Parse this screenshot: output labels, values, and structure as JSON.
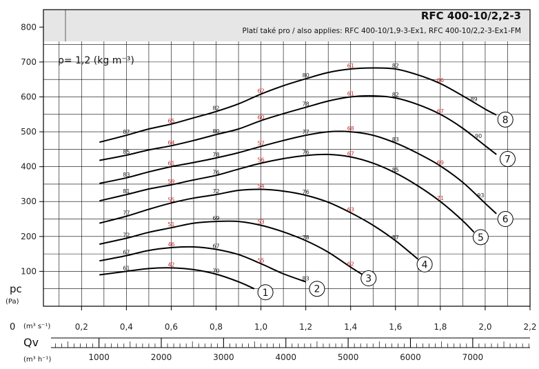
{
  "chart_data": {
    "type": "line",
    "title": "RFC 400-10/2,2-3",
    "subtitle": "Platí také pro / also applies: RFC 400-10/1,9-3-Ex1, RFC 400-10/2,2-3-Ex1-FM",
    "density_note": "ρ= 1,2 (kg m⁻³)",
    "ylabel": "pc",
    "ylabel_unit": "(Pa)",
    "ylim": [
      0,
      850
    ],
    "y_ticks": [
      "100",
      "200",
      "300",
      "400",
      "500",
      "600",
      "700",
      "800"
    ],
    "xlabel": "Qv",
    "x_unit_m3s": "(m³ s⁻¹)",
    "x_unit_m3h": "(m³ h⁻¹)",
    "x_origin_label": "0",
    "xlim": [
      0.03,
      2.2
    ],
    "x_ticks_m3s": [
      "0,2",
      "0,4",
      "0,6",
      "0,8",
      "1,0",
      "1,2",
      "1,4",
      "1,6",
      "1,8",
      "2,0",
      "2,2"
    ],
    "x_ticks_m3h": [
      "1000",
      "2000",
      "3000",
      "4000",
      "5000",
      "6000",
      "7000"
    ],
    "series": [
      {
        "name": "1",
        "x": [
          0.28,
          0.4,
          0.5,
          0.6,
          0.7,
          0.8,
          0.9,
          0.97
        ],
        "y": [
          90,
          100,
          108,
          110,
          105,
          92,
          70,
          50
        ],
        "labels": [
          [
            "61",
            0.4,
            100,
            "black"
          ],
          [
            "42",
            0.6,
            110,
            "red"
          ],
          [
            "70",
            0.8,
            92,
            "black"
          ]
        ]
      },
      {
        "name": "2",
        "x": [
          0.28,
          0.4,
          0.5,
          0.6,
          0.7,
          0.8,
          0.9,
          1.0,
          1.1,
          1.2
        ],
        "y": [
          130,
          145,
          160,
          168,
          170,
          163,
          148,
          122,
          93,
          70
        ],
        "labels": [
          [
            "67",
            0.4,
            145,
            "black"
          ],
          [
            "46",
            0.6,
            168,
            "red"
          ],
          [
            "67",
            0.8,
            163,
            "black"
          ],
          [
            "55",
            1.0,
            122,
            "red"
          ],
          [
            "83",
            1.2,
            70,
            "black"
          ]
        ]
      },
      {
        "name": "3",
        "x": [
          0.28,
          0.4,
          0.5,
          0.6,
          0.7,
          0.8,
          0.9,
          1.0,
          1.1,
          1.2,
          1.3,
          1.4,
          1.45
        ],
        "y": [
          178,
          195,
          212,
          225,
          238,
          243,
          243,
          232,
          213,
          188,
          155,
          112,
          92
        ],
        "labels": [
          [
            "72",
            0.4,
            195,
            "black"
          ],
          [
            "51",
            0.6,
            225,
            "red"
          ],
          [
            "69",
            0.8,
            243,
            "black"
          ],
          [
            "53",
            1.0,
            232,
            "red"
          ],
          [
            "78",
            1.2,
            188,
            "black"
          ],
          [
            "62",
            1.4,
            112,
            "red"
          ]
        ]
      },
      {
        "name": "4",
        "x": [
          0.28,
          0.4,
          0.5,
          0.6,
          0.7,
          0.8,
          0.9,
          1.0,
          1.1,
          1.2,
          1.3,
          1.4,
          1.5,
          1.6,
          1.7
        ],
        "y": [
          238,
          258,
          278,
          296,
          310,
          320,
          332,
          335,
          330,
          318,
          298,
          268,
          232,
          188,
          135
        ],
        "labels": [
          [
            "77",
            0.4,
            258,
            "black"
          ],
          [
            "55",
            0.6,
            296,
            "red"
          ],
          [
            "72",
            0.8,
            320,
            "black"
          ],
          [
            "54",
            1.0,
            335,
            "red"
          ],
          [
            "76",
            1.2,
            318,
            "black"
          ],
          [
            "63",
            1.4,
            268,
            "red"
          ],
          [
            "87",
            1.6,
            188,
            "black"
          ]
        ]
      },
      {
        "name": "5",
        "x": [
          0.28,
          0.4,
          0.5,
          0.6,
          0.7,
          0.8,
          0.9,
          1.0,
          1.1,
          1.2,
          1.3,
          1.4,
          1.5,
          1.6,
          1.7,
          1.8,
          1.9,
          1.95
        ],
        "y": [
          302,
          320,
          336,
          348,
          362,
          375,
          393,
          410,
          423,
          432,
          435,
          428,
          410,
          382,
          345,
          300,
          245,
          212
        ],
        "labels": [
          [
            "81",
            0.4,
            320,
            "black"
          ],
          [
            "59",
            0.6,
            348,
            "red"
          ],
          [
            "76",
            0.8,
            375,
            "black"
          ],
          [
            "56",
            1.0,
            410,
            "red"
          ],
          [
            "76",
            1.2,
            432,
            "black"
          ],
          [
            "67",
            1.4,
            428,
            "red"
          ],
          [
            "85",
            1.6,
            382,
            "black"
          ],
          [
            "71",
            1.8,
            300,
            "red"
          ]
        ]
      },
      {
        "name": "6",
        "x": [
          0.28,
          0.4,
          0.5,
          0.6,
          0.7,
          0.8,
          0.9,
          1.0,
          1.1,
          1.2,
          1.3,
          1.4,
          1.5,
          1.6,
          1.7,
          1.8,
          1.9,
          2.0,
          2.05
        ],
        "y": [
          352,
          368,
          385,
          400,
          412,
          425,
          440,
          458,
          475,
          490,
          500,
          500,
          490,
          468,
          438,
          402,
          355,
          295,
          265
        ],
        "labels": [
          [
            "83",
            0.4,
            368,
            "black"
          ],
          [
            "61",
            0.6,
            400,
            "red"
          ],
          [
            "78",
            0.8,
            425,
            "black"
          ],
          [
            "57",
            1.0,
            458,
            "red"
          ],
          [
            "77",
            1.2,
            490,
            "black"
          ],
          [
            "68",
            1.4,
            500,
            "red"
          ],
          [
            "83",
            1.6,
            468,
            "black"
          ],
          [
            "69",
            1.8,
            402,
            "red"
          ],
          [
            "93",
            1.98,
            308,
            "black"
          ]
        ]
      },
      {
        "name": "7",
        "x": [
          0.28,
          0.4,
          0.5,
          0.6,
          0.7,
          0.8,
          0.9,
          1.0,
          1.1,
          1.2,
          1.3,
          1.4,
          1.5,
          1.6,
          1.7,
          1.8,
          1.9,
          2.0,
          2.05
        ],
        "y": [
          418,
          433,
          448,
          460,
          475,
          492,
          508,
          532,
          552,
          570,
          588,
          600,
          603,
          597,
          578,
          550,
          510,
          460,
          435
        ],
        "labels": [
          [
            "85",
            0.4,
            433,
            "black"
          ],
          [
            "64",
            0.6,
            460,
            "red"
          ],
          [
            "80",
            0.8,
            492,
            "black"
          ],
          [
            "60",
            1.0,
            532,
            "red"
          ],
          [
            "78",
            1.2,
            570,
            "black"
          ],
          [
            "61",
            1.4,
            600,
            "red"
          ],
          [
            "82",
            1.6,
            597,
            "black"
          ],
          [
            "67",
            1.8,
            550,
            "red"
          ],
          [
            "90",
            1.97,
            478,
            "black"
          ]
        ]
      },
      {
        "name": "8",
        "x": [
          0.28,
          0.4,
          0.5,
          0.6,
          0.7,
          0.8,
          0.9,
          1.0,
          1.1,
          1.2,
          1.3,
          1.4,
          1.5,
          1.6,
          1.7,
          1.8,
          1.9,
          2.0,
          2.05
        ],
        "y": [
          470,
          490,
          508,
          522,
          540,
          558,
          580,
          608,
          632,
          652,
          670,
          680,
          683,
          680,
          663,
          638,
          603,
          565,
          548
        ],
        "labels": [
          [
            "87",
            0.4,
            490,
            "black"
          ],
          [
            "65",
            0.6,
            522,
            "red"
          ],
          [
            "82",
            0.8,
            558,
            "black"
          ],
          [
            "62",
            1.0,
            608,
            "red"
          ],
          [
            "80",
            1.2,
            652,
            "black"
          ],
          [
            "61",
            1.4,
            680,
            "red"
          ],
          [
            "82",
            1.6,
            680,
            "black"
          ],
          [
            "66",
            1.8,
            638,
            "red"
          ],
          [
            "89",
            1.95,
            584,
            "black"
          ]
        ]
      }
    ],
    "curve_markers": [
      {
        "text": "1",
        "x": 1.02,
        "y": 40
      },
      {
        "text": "2",
        "x": 1.25,
        "y": 50
      },
      {
        "text": "3",
        "x": 1.48,
        "y": 80
      },
      {
        "text": "4",
        "x": 1.73,
        "y": 120
      },
      {
        "text": "5",
        "x": 1.98,
        "y": 198
      },
      {
        "text": "6",
        "x": 2.09,
        "y": 250
      },
      {
        "text": "7",
        "x": 2.1,
        "y": 422
      },
      {
        "text": "8",
        "x": 2.09,
        "y": 535
      }
    ],
    "grid": true
  }
}
